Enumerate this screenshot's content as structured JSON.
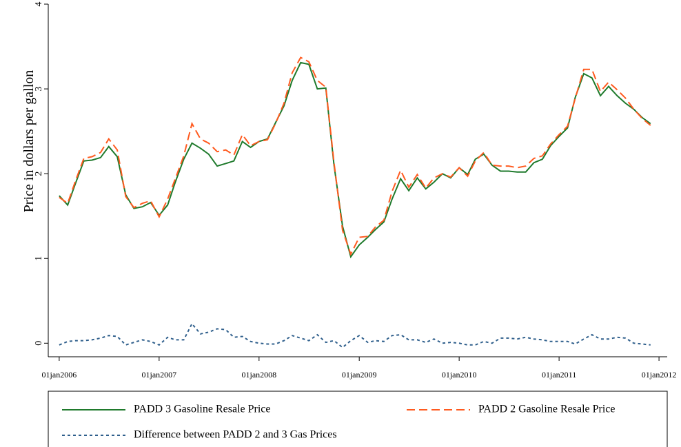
{
  "chart_data": {
    "type": "line",
    "y_label": "Price in dollars per gallon",
    "x": [
      "2006-01-01",
      "2006-02-01",
      "2006-03-01",
      "2006-04-01",
      "2006-05-01",
      "2006-06-01",
      "2006-07-01",
      "2006-08-01",
      "2006-09-01",
      "2006-10-01",
      "2006-11-01",
      "2006-12-01",
      "2007-01-01",
      "2007-02-01",
      "2007-03-01",
      "2007-04-01",
      "2007-05-01",
      "2007-06-01",
      "2007-07-01",
      "2007-08-01",
      "2007-09-01",
      "2007-10-01",
      "2007-11-01",
      "2007-12-01",
      "2008-01-01",
      "2008-02-01",
      "2008-03-01",
      "2008-04-01",
      "2008-05-01",
      "2008-06-01",
      "2008-07-01",
      "2008-08-01",
      "2008-09-01",
      "2008-10-01",
      "2008-11-01",
      "2008-12-01",
      "2009-01-01",
      "2009-02-01",
      "2009-03-01",
      "2009-04-01",
      "2009-05-01",
      "2009-06-01",
      "2009-07-01",
      "2009-08-01",
      "2009-09-01",
      "2009-10-01",
      "2009-11-01",
      "2009-12-01",
      "2010-01-01",
      "2010-02-01",
      "2010-03-01",
      "2010-04-01",
      "2010-05-01",
      "2010-06-01",
      "2010-07-01",
      "2010-08-01",
      "2010-09-01",
      "2010-10-01",
      "2010-11-01",
      "2010-12-01",
      "2011-01-01",
      "2011-02-01",
      "2011-03-01",
      "2011-04-01",
      "2011-05-01",
      "2011-06-01",
      "2011-07-01",
      "2011-08-01",
      "2011-09-01",
      "2011-10-01",
      "2011-11-01",
      "2011-12-01"
    ],
    "series": [
      {
        "name": "PADD 3 Gasoline Resale Price",
        "color": "#1f7a2c",
        "style": "solid",
        "values": [
          1.74,
          1.63,
          1.88,
          2.15,
          2.16,
          2.19,
          2.32,
          2.2,
          1.75,
          1.59,
          1.61,
          1.66,
          1.51,
          1.63,
          1.9,
          2.17,
          2.36,
          2.3,
          2.23,
          2.09,
          2.12,
          2.15,
          2.38,
          2.31,
          2.38,
          2.41,
          2.6,
          2.8,
          3.1,
          3.31,
          3.29,
          3.0,
          3.01,
          2.1,
          1.38,
          1.02,
          1.16,
          1.25,
          1.34,
          1.43,
          1.7,
          1.94,
          1.8,
          1.95,
          1.82,
          1.9,
          2.0,
          1.95,
          2.07,
          1.99,
          2.17,
          2.23,
          2.1,
          2.03,
          2.03,
          2.02,
          2.02,
          2.13,
          2.17,
          2.33,
          2.44,
          2.54,
          2.9,
          3.18,
          3.13,
          2.92,
          3.03,
          2.92,
          2.83,
          2.76,
          2.66,
          2.59
        ]
      },
      {
        "name": "PADD 2 Gasoline Resale Price",
        "color": "#ff5a1f",
        "style": "dashed",
        "values": [
          1.72,
          1.65,
          1.91,
          2.18,
          2.2,
          2.25,
          2.41,
          2.28,
          1.73,
          1.6,
          1.65,
          1.68,
          1.49,
          1.7,
          1.94,
          2.21,
          2.59,
          2.41,
          2.36,
          2.26,
          2.28,
          2.22,
          2.46,
          2.33,
          2.38,
          2.4,
          2.59,
          2.83,
          3.19,
          3.37,
          3.32,
          3.1,
          3.02,
          2.13,
          1.33,
          1.05,
          1.25,
          1.26,
          1.37,
          1.45,
          1.79,
          2.04,
          1.84,
          1.99,
          1.83,
          1.95,
          2.0,
          1.96,
          2.07,
          1.97,
          2.15,
          2.25,
          2.1,
          2.09,
          2.09,
          2.07,
          2.09,
          2.18,
          2.21,
          2.35,
          2.46,
          2.56,
          2.89,
          3.23,
          3.23,
          2.97,
          3.08,
          2.99,
          2.89,
          2.76,
          2.65,
          2.57
        ]
      },
      {
        "name": "Difference between PADD 2 and 3 Gas Prices",
        "color": "#2f5f8c",
        "style": "dotted",
        "values": [
          -0.02,
          0.02,
          0.03,
          0.03,
          0.04,
          0.06,
          0.09,
          0.08,
          -0.02,
          0.01,
          0.04,
          0.02,
          -0.02,
          0.07,
          0.04,
          0.04,
          0.23,
          0.11,
          0.13,
          0.17,
          0.16,
          0.07,
          0.08,
          0.02,
          0,
          -0.01,
          -0.01,
          0.03,
          0.09,
          0.06,
          0.03,
          0.1,
          0.01,
          0.03,
          -0.05,
          0.03,
          0.09,
          0.01,
          0.03,
          0.02,
          0.09,
          0.1,
          0.04,
          0.04,
          0.01,
          0.05,
          0,
          0.01,
          0,
          -0.02,
          -0.02,
          0.02,
          0,
          0.06,
          0.06,
          0.05,
          0.07,
          0.05,
          0.04,
          0.02,
          0.02,
          0.02,
          -0.01,
          0.05,
          0.1,
          0.05,
          0.05,
          0.07,
          0.06,
          0,
          -0.01,
          -0.02
        ]
      }
    ],
    "xlim": [
      "2005-11-22",
      "2012-01-31"
    ],
    "xticks": [
      {
        "value": "2006-01-01",
        "label": "01jan2006"
      },
      {
        "value": "2007-01-01",
        "label": "01jan2007"
      },
      {
        "value": "2008-01-01",
        "label": "01jan2008"
      },
      {
        "value": "2009-01-01",
        "label": "01jan2009"
      },
      {
        "value": "2010-01-01",
        "label": "01jan2010"
      },
      {
        "value": "2011-01-01",
        "label": "01jan2011"
      },
      {
        "value": "2012-01-01",
        "label": "01jan2012"
      }
    ],
    "ylim": [
      -0.16,
      4.0
    ],
    "yticks": [
      0,
      1,
      2,
      3,
      4
    ],
    "grid": false,
    "legend": "bottom"
  }
}
